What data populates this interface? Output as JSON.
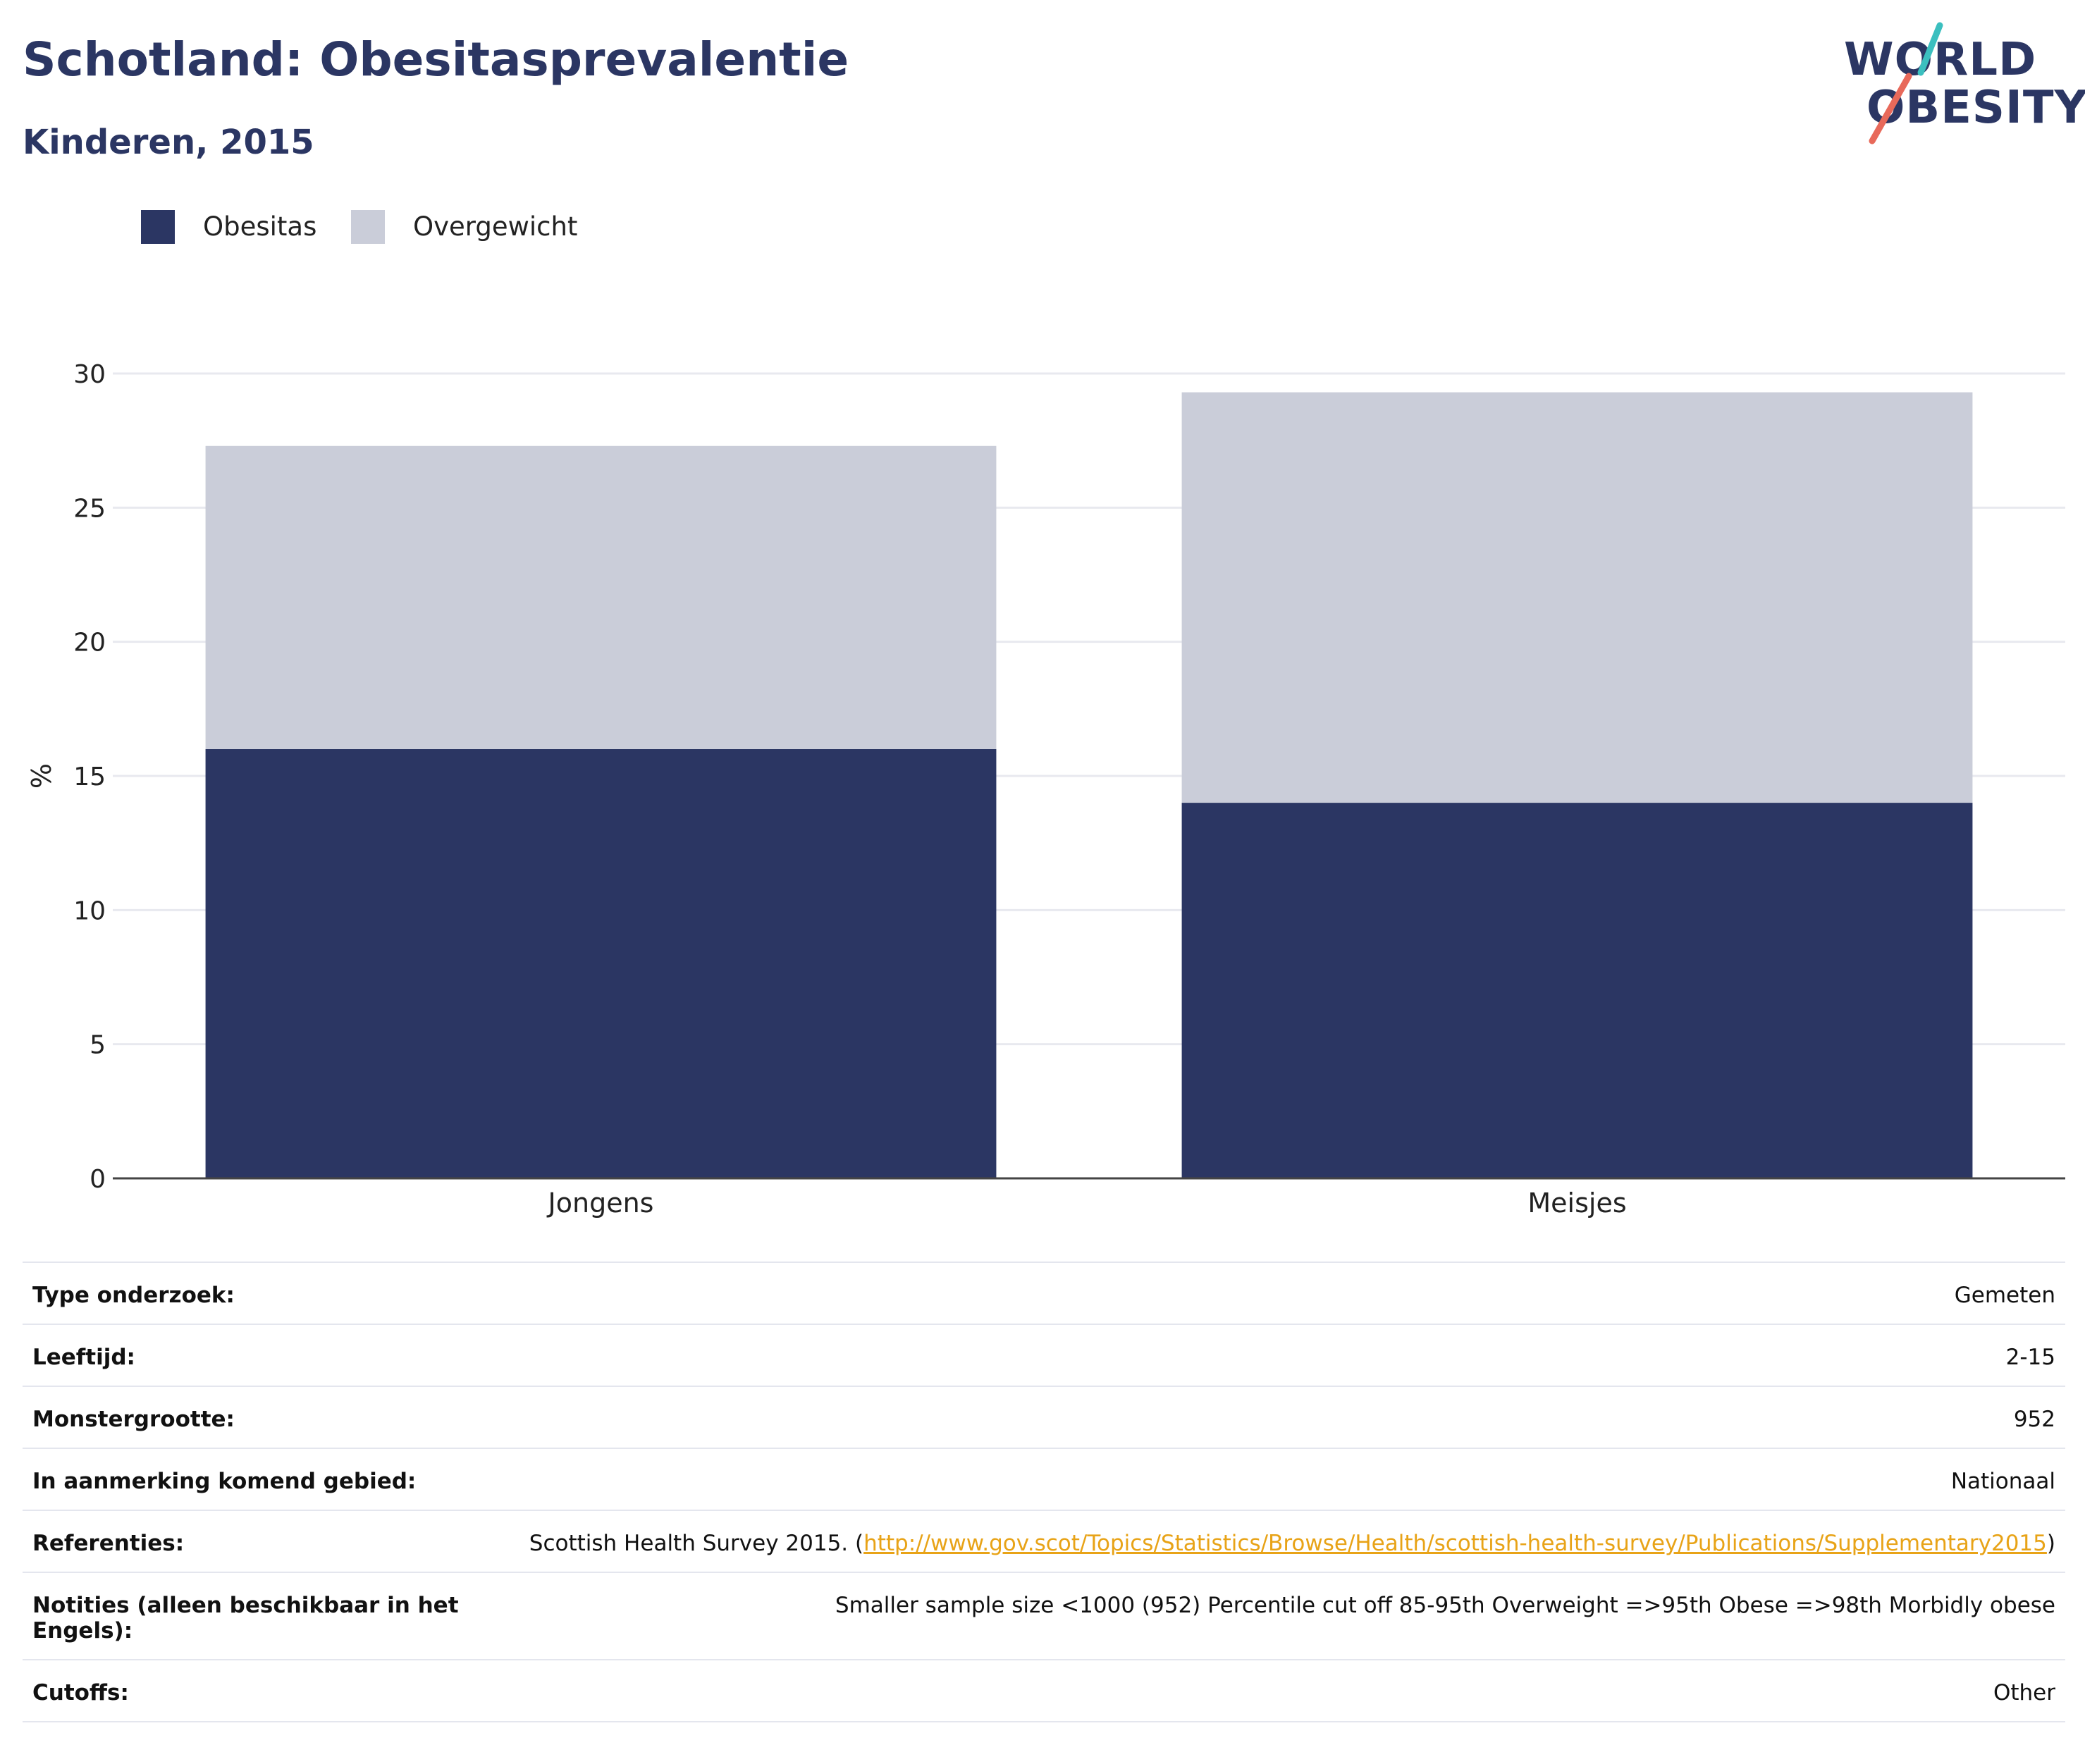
{
  "header": {
    "title": "Schotland: Obesitasprevalentie",
    "subtitle": "Kinderen, 2015"
  },
  "logo": {
    "line1": "WORLD",
    "line2": "OBESITY",
    "accent_teal": "#3bbfbf",
    "accent_coral": "#e8695a"
  },
  "legend": [
    {
      "label": "Obesitas",
      "color": "#2b3663"
    },
    {
      "label": "Overgewicht",
      "color": "#cacdd9"
    }
  ],
  "chart_data": {
    "type": "bar",
    "stacked": true,
    "categories": [
      "Jongens",
      "Meisjes"
    ],
    "series": [
      {
        "name": "Obesitas",
        "values": [
          16,
          14
        ],
        "color": "#2b3663"
      },
      {
        "name": "Overgewicht",
        "values": [
          11.3,
          15.3
        ],
        "color": "#cacdd9"
      }
    ],
    "xlabel": "",
    "ylabel": "%",
    "ylim": [
      0,
      30
    ],
    "yticks": [
      0,
      5,
      10,
      15,
      20,
      25,
      30
    ],
    "grid": true,
    "legend_position": "top-left"
  },
  "info": [
    {
      "label": "Type onderzoek:",
      "value": "Gemeten"
    },
    {
      "label": "Leeftijd:",
      "value": "2-15"
    },
    {
      "label": "Monstergrootte:",
      "value": "952"
    },
    {
      "label": "In aanmerking komend gebied:",
      "value": "Nationaal"
    },
    {
      "label": "Referenties:",
      "value_prefix": "Scottish Health Survey 2015. (",
      "link": "http://www.gov.scot/Topics/Statistics/Browse/Health/scottish-health-survey/Publications/Supplementary2015",
      "value_suffix": ")"
    },
    {
      "label": "Notities (alleen beschikbaar in het Engels):",
      "value": "Smaller sample size <1000 (952) Percentile cut off 85-95th Overweight =>95th Obese =>98th Morbidly obese"
    },
    {
      "label": "Cutoffs:",
      "value": "Other"
    }
  ],
  "colors": {
    "primary": "#2b3663",
    "secondary": "#cacdd9",
    "gridline": "#e8e9ef",
    "link": "#e8a317"
  }
}
